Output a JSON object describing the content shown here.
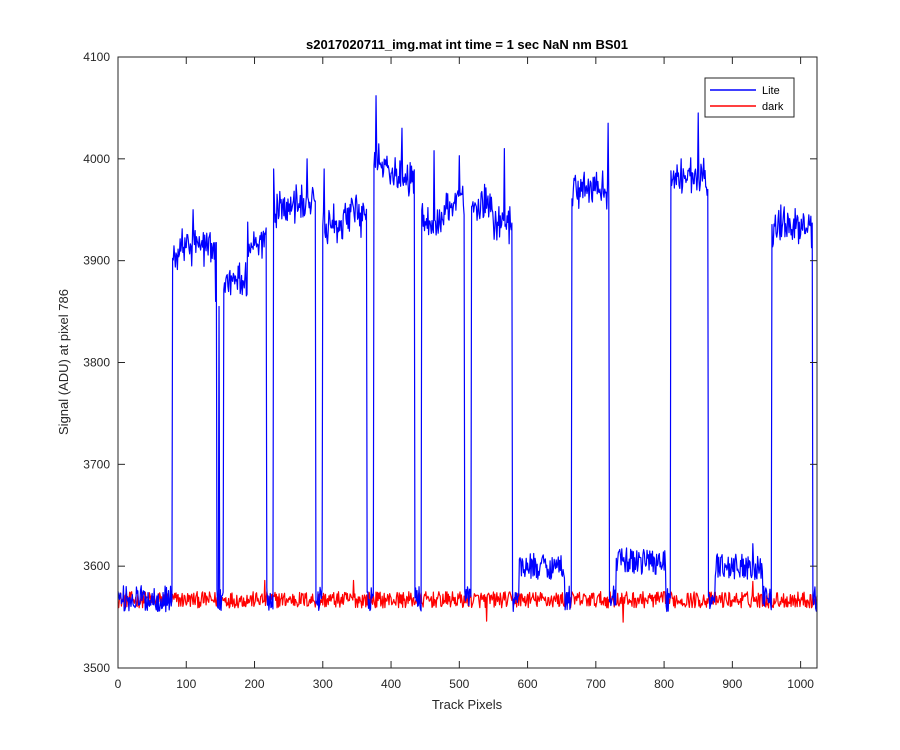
{
  "chart_data": {
    "type": "line",
    "title": "s2017020711_img.mat int time = 1 sec  NaN nm BS01",
    "xlabel": "Track Pixels",
    "ylabel": "Signal (ADU) at pixel 786",
    "xlim": [
      0,
      1024
    ],
    "ylim": [
      3500,
      4100
    ],
    "xticks": [
      "0",
      "100",
      "200",
      "300",
      "400",
      "500",
      "600",
      "700",
      "800",
      "900",
      "1000"
    ],
    "yticks": [
      "3500",
      "3600",
      "3700",
      "3800",
      "3900",
      "4000",
      "4100"
    ],
    "grid": false,
    "legend_position": "top-right",
    "series": [
      {
        "name": "Lite",
        "color": "#0000ff",
        "noise": 13,
        "segments": [
          {
            "from": 0,
            "to": 80,
            "level": 3568
          },
          {
            "from": 80,
            "to": 90,
            "level": 3905
          },
          {
            "from": 90,
            "to": 120,
            "level": 3915
          },
          {
            "from": 120,
            "to": 145,
            "level": 3915
          },
          {
            "from": 145,
            "to": 155,
            "level": 3568
          },
          {
            "from": 155,
            "to": 190,
            "level": 3880
          },
          {
            "from": 190,
            "to": 218,
            "level": 3920
          },
          {
            "from": 218,
            "to": 228,
            "level": 3568
          },
          {
            "from": 228,
            "to": 255,
            "level": 3950
          },
          {
            "from": 255,
            "to": 290,
            "level": 3955
          },
          {
            "from": 290,
            "to": 300,
            "level": 3568
          },
          {
            "from": 300,
            "to": 330,
            "level": 3935
          },
          {
            "from": 330,
            "to": 365,
            "level": 3945
          },
          {
            "from": 365,
            "to": 375,
            "level": 3568
          },
          {
            "from": 375,
            "to": 400,
            "level": 3995
          },
          {
            "from": 400,
            "to": 435,
            "level": 3985
          },
          {
            "from": 435,
            "to": 445,
            "level": 3568
          },
          {
            "from": 445,
            "to": 480,
            "level": 3940
          },
          {
            "from": 480,
            "to": 508,
            "level": 3955
          },
          {
            "from": 508,
            "to": 518,
            "level": 3568
          },
          {
            "from": 518,
            "to": 550,
            "level": 3955
          },
          {
            "from": 550,
            "to": 578,
            "level": 3935
          },
          {
            "from": 578,
            "to": 588,
            "level": 3568
          },
          {
            "from": 588,
            "to": 655,
            "level": 3600
          },
          {
            "from": 655,
            "to": 665,
            "level": 3568
          },
          {
            "from": 665,
            "to": 720,
            "level": 3970
          },
          {
            "from": 720,
            "to": 730,
            "level": 3568
          },
          {
            "from": 730,
            "to": 803,
            "level": 3605
          },
          {
            "from": 803,
            "to": 810,
            "level": 3568
          },
          {
            "from": 810,
            "to": 865,
            "level": 3980
          },
          {
            "from": 865,
            "to": 875,
            "level": 3568
          },
          {
            "from": 875,
            "to": 945,
            "level": 3600
          },
          {
            "from": 945,
            "to": 958,
            "level": 3568
          },
          {
            "from": 958,
            "to": 1018,
            "level": 3935
          },
          {
            "from": 1018,
            "to": 1024,
            "level": 3568
          }
        ],
        "spikes": [
          {
            "x": 110,
            "y": 3950
          },
          {
            "x": 228,
            "y": 3990
          },
          {
            "x": 277,
            "y": 4000
          },
          {
            "x": 302,
            "y": 3990
          },
          {
            "x": 378,
            "y": 4062
          },
          {
            "x": 416,
            "y": 4030
          },
          {
            "x": 463,
            "y": 4008
          },
          {
            "x": 500,
            "y": 4003
          },
          {
            "x": 566,
            "y": 4010
          },
          {
            "x": 718,
            "y": 4035
          },
          {
            "x": 825,
            "y": 4000
          },
          {
            "x": 850,
            "y": 4045
          },
          {
            "x": 143,
            "y": 3860
          },
          {
            "x": 148,
            "y": 3855
          },
          {
            "x": 930,
            "y": 3622
          }
        ]
      },
      {
        "name": "dark",
        "color": "#ff0000",
        "noise": 8,
        "segments": [
          {
            "from": 0,
            "to": 1024,
            "level": 3567
          }
        ],
        "spikes": [
          {
            "x": 215,
            "y": 3586
          },
          {
            "x": 345,
            "y": 3586
          },
          {
            "x": 540,
            "y": 3546
          },
          {
            "x": 740,
            "y": 3545
          },
          {
            "x": 930,
            "y": 3585
          }
        ]
      }
    ]
  }
}
